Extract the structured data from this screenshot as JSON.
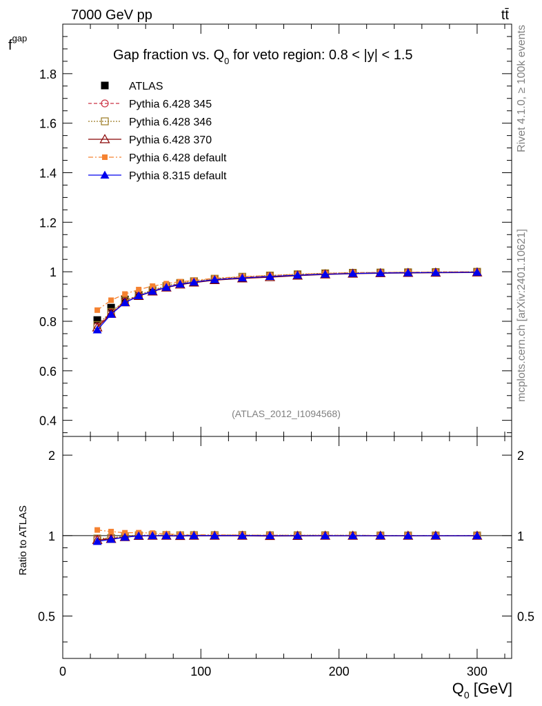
{
  "header": {
    "energy_label": "7000 GeV pp",
    "process_label": "tt̄"
  },
  "side_labels": {
    "rivet": "Rivet 4.1.0, ≥ 100k events",
    "source": "mcplots.cern.ch [arXiv:2401.10621]"
  },
  "watermark": "(ATLAS_2012_I1094568)",
  "chart_data": {
    "type": "line",
    "title": "Gap fraction vs. Q0 for veto region: 0.8 < |y| < 1.5",
    "title_parts": {
      "main": "Gap fraction vs. Q",
      "sub": "0",
      "rest": " for veto region: 0.8 < |y| < 1.5"
    },
    "xlabel": "Q0 [GeV]",
    "xlabel_parts": {
      "main": "Q",
      "sub": "0",
      "rest": " [GeV]"
    },
    "ylabel": "fgap",
    "ylabel_parts": {
      "main": "f",
      "sub": "gap"
    },
    "ratio_ylabel": "Ratio to ATLAS",
    "xlim": [
      0,
      325
    ],
    "ylim": [
      0.335,
      2.0
    ],
    "ratio_ylim": [
      0.347,
      2.35
    ],
    "x_ticks": [
      0,
      100,
      200,
      300
    ],
    "y_ticks": [
      0.4,
      0.6,
      0.8,
      1,
      1.2,
      1.4,
      1.6,
      1.8
    ],
    "y_tick_labels": [
      "0.4",
      "0.6",
      "0.8",
      "1",
      "1.2",
      "1.4",
      "1.6",
      "1.8"
    ],
    "ratio_ticks": [
      0.5,
      1,
      2
    ],
    "ratio_tick_labels": [
      "0.5",
      "1",
      "2"
    ],
    "x": [
      25,
      35,
      45,
      55,
      65,
      75,
      85,
      95,
      110,
      130,
      150,
      170,
      190,
      210,
      230,
      250,
      270,
      300
    ],
    "reference": {
      "name": "ATLAS",
      "color": "#000000",
      "values": [
        0.805,
        0.855,
        0.888,
        0.905,
        0.922,
        0.938,
        0.952,
        0.958,
        0.968,
        0.975,
        0.982,
        0.987,
        0.991,
        0.994,
        0.996,
        0.997,
        0.998,
        0.999
      ]
    },
    "series": [
      {
        "name": "Pythia 6.428 345",
        "color": "#cc3344",
        "marker": "circle-open",
        "dash": "5,3",
        "values": [
          0.78,
          0.835,
          0.88,
          0.903,
          0.923,
          0.94,
          0.952,
          0.96,
          0.97,
          0.978,
          0.984,
          0.989,
          0.993,
          0.996,
          0.997,
          0.998,
          0.999,
          1.0
        ]
      },
      {
        "name": "Pythia 6.428 346",
        "color": "#99771f",
        "marker": "square-open",
        "dash": "2,2",
        "values": [
          0.785,
          0.838,
          0.883,
          0.907,
          0.926,
          0.943,
          0.955,
          0.962,
          0.972,
          0.98,
          0.985,
          0.99,
          0.994,
          0.996,
          0.997,
          0.998,
          0.999,
          1.0
        ]
      },
      {
        "name": "Pythia 6.428 370",
        "color": "#880000",
        "marker": "triangle-open",
        "dash": "",
        "values": [
          0.775,
          0.83,
          0.876,
          0.902,
          0.92,
          0.936,
          0.948,
          0.956,
          0.966,
          0.973,
          0.978,
          0.984,
          0.989,
          0.992,
          0.994,
          0.995,
          0.996,
          0.997
        ]
      },
      {
        "name": "Pythia 6.428 default",
        "color": "#f58231",
        "marker": "square-filled",
        "dash": "7,3,2,3",
        "values": [
          0.845,
          0.885,
          0.91,
          0.928,
          0.942,
          0.952,
          0.96,
          0.965,
          0.974,
          0.98,
          0.985,
          0.989,
          0.993,
          0.996,
          0.997,
          0.998,
          0.999,
          1.0
        ]
      },
      {
        "name": "Pythia 8.315 default",
        "color": "#0000ee",
        "marker": "triangle-filled",
        "dash": "",
        "values": [
          0.765,
          0.828,
          0.875,
          0.903,
          0.921,
          0.937,
          0.95,
          0.958,
          0.968,
          0.975,
          0.981,
          0.986,
          0.99,
          0.993,
          0.995,
          0.996,
          0.997,
          0.998
        ]
      }
    ]
  }
}
